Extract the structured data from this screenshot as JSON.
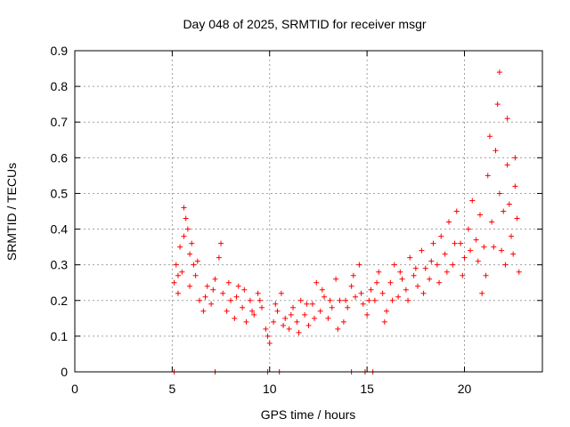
{
  "chart_data": {
    "type": "scatter",
    "title": "Day 048 of 2025, SRMTID for receiver msgr",
    "xlabel": "GPS time / hours",
    "ylabel": "SRMTID / TECUs",
    "xlim": [
      0,
      24
    ],
    "ylim": [
      0,
      0.9
    ],
    "xticks": [
      0,
      5,
      10,
      15,
      20
    ],
    "xtick_labels": [
      "0",
      "5",
      "10",
      "15",
      "20"
    ],
    "yticks": [
      0,
      0.1,
      0.2,
      0.3,
      0.4,
      0.5,
      0.6,
      0.7,
      0.8,
      0.9
    ],
    "ytick_labels": [
      "0",
      "0.1",
      "0.2",
      "0.3",
      "0.4",
      "0.5",
      "0.6",
      "0.7",
      "0.8",
      "0.9"
    ],
    "grid": true,
    "marker": "+",
    "color": "#ff0000",
    "series": [
      {
        "name": "SRMTID",
        "points": [
          [
            5.1,
            0.25
          ],
          [
            5.2,
            0.3
          ],
          [
            5.3,
            0.22
          ],
          [
            5.4,
            0.35
          ],
          [
            5.5,
            0.28
          ],
          [
            5.6,
            0.46
          ],
          [
            5.7,
            0.43
          ],
          [
            5.8,
            0.4
          ],
          [
            5.9,
            0.33
          ],
          [
            6.0,
            0.36
          ],
          [
            6.1,
            0.3
          ],
          [
            6.2,
            0.27
          ],
          [
            6.4,
            0.2
          ],
          [
            6.6,
            0.17
          ],
          [
            6.8,
            0.24
          ],
          [
            7.0,
            0.19
          ],
          [
            7.2,
            0.26
          ],
          [
            7.4,
            0.32
          ],
          [
            7.6,
            0.22
          ],
          [
            7.8,
            0.17
          ],
          [
            8.0,
            0.2
          ],
          [
            8.2,
            0.15
          ],
          [
            8.4,
            0.24
          ],
          [
            8.6,
            0.18
          ],
          [
            8.8,
            0.14
          ],
          [
            9.0,
            0.2
          ],
          [
            9.2,
            0.16
          ],
          [
            9.4,
            0.22
          ],
          [
            9.6,
            0.18
          ],
          [
            9.8,
            0.12
          ],
          [
            10.0,
            0.08
          ],
          [
            10.2,
            0.14
          ],
          [
            10.4,
            0.17
          ],
          [
            10.6,
            0.22
          ],
          [
            10.8,
            0.15
          ],
          [
            11.0,
            0.12
          ],
          [
            11.2,
            0.18
          ],
          [
            11.4,
            0.14
          ],
          [
            11.6,
            0.2
          ],
          [
            11.8,
            0.16
          ],
          [
            12.0,
            0.13
          ],
          [
            12.2,
            0.19
          ],
          [
            12.4,
            0.25
          ],
          [
            12.6,
            0.17
          ],
          [
            12.8,
            0.21
          ],
          [
            13.0,
            0.15
          ],
          [
            13.2,
            0.18
          ],
          [
            13.4,
            0.26
          ],
          [
            13.6,
            0.2
          ],
          [
            13.8,
            0.14
          ],
          [
            14.0,
            0.18
          ],
          [
            14.2,
            0.24
          ],
          [
            14.4,
            0.21
          ],
          [
            14.6,
            0.3
          ],
          [
            14.8,
            0.19
          ],
          [
            15.0,
            0.16
          ],
          [
            15.2,
            0.23
          ],
          [
            15.4,
            0.2
          ],
          [
            15.6,
            0.28
          ],
          [
            15.8,
            0.22
          ],
          [
            16.0,
            0.17
          ],
          [
            16.2,
            0.25
          ],
          [
            16.4,
            0.3
          ],
          [
            16.6,
            0.21
          ],
          [
            16.8,
            0.26
          ],
          [
            17.0,
            0.23
          ],
          [
            17.2,
            0.32
          ],
          [
            17.4,
            0.27
          ],
          [
            17.6,
            0.24
          ],
          [
            17.8,
            0.34
          ],
          [
            18.0,
            0.29
          ],
          [
            18.2,
            0.26
          ],
          [
            18.4,
            0.36
          ],
          [
            18.6,
            0.3
          ],
          [
            18.8,
            0.38
          ],
          [
            19.0,
            0.33
          ],
          [
            19.2,
            0.42
          ],
          [
            19.4,
            0.3
          ],
          [
            19.6,
            0.45
          ],
          [
            19.8,
            0.36
          ],
          [
            20.0,
            0.32
          ],
          [
            20.2,
            0.4
          ],
          [
            20.4,
            0.48
          ],
          [
            20.6,
            0.37
          ],
          [
            20.8,
            0.44
          ],
          [
            21.0,
            0.35
          ],
          [
            21.2,
            0.55
          ],
          [
            21.4,
            0.42
          ],
          [
            21.6,
            0.62
          ],
          [
            21.8,
            0.5
          ],
          [
            22.0,
            0.45
          ],
          [
            22.2,
            0.58
          ],
          [
            22.4,
            0.38
          ],
          [
            22.6,
            0.52
          ],
          [
            5.3,
            0.27
          ],
          [
            5.6,
            0.38
          ],
          [
            5.9,
            0.24
          ],
          [
            6.3,
            0.31
          ],
          [
            6.7,
            0.21
          ],
          [
            7.1,
            0.23
          ],
          [
            7.5,
            0.36
          ],
          [
            7.9,
            0.25
          ],
          [
            8.3,
            0.21
          ],
          [
            8.7,
            0.23
          ],
          [
            9.1,
            0.17
          ],
          [
            9.5,
            0.2
          ],
          [
            9.9,
            0.1
          ],
          [
            10.3,
            0.19
          ],
          [
            10.7,
            0.13
          ],
          [
            11.1,
            0.16
          ],
          [
            11.5,
            0.11
          ],
          [
            11.9,
            0.19
          ],
          [
            12.3,
            0.15
          ],
          [
            12.7,
            0.23
          ],
          [
            13.1,
            0.2
          ],
          [
            13.5,
            0.12
          ],
          [
            13.9,
            0.2
          ],
          [
            14.3,
            0.27
          ],
          [
            14.7,
            0.22
          ],
          [
            15.1,
            0.2
          ],
          [
            15.5,
            0.25
          ],
          [
            15.9,
            0.14
          ],
          [
            16.3,
            0.2
          ],
          [
            16.7,
            0.28
          ],
          [
            17.1,
            0.2
          ],
          [
            17.5,
            0.29
          ],
          [
            17.9,
            0.22
          ],
          [
            18.3,
            0.31
          ],
          [
            18.7,
            0.25
          ],
          [
            19.1,
            0.28
          ],
          [
            19.5,
            0.36
          ],
          [
            19.9,
            0.27
          ],
          [
            20.3,
            0.34
          ],
          [
            20.7,
            0.31
          ],
          [
            21.1,
            0.27
          ],
          [
            21.5,
            0.35
          ],
          [
            21.7,
            0.75
          ],
          [
            21.9,
            0.34
          ],
          [
            22.1,
            0.3
          ],
          [
            22.3,
            0.47
          ],
          [
            22.5,
            0.33
          ],
          [
            22.7,
            0.43
          ],
          [
            20.9,
            0.22
          ],
          [
            21.3,
            0.66
          ],
          [
            21.8,
            0.84
          ],
          [
            22.2,
            0.71
          ],
          [
            22.6,
            0.6
          ],
          [
            22.8,
            0.28
          ]
        ]
      }
    ],
    "zero_markers": [
      5.1,
      7.2,
      9.9,
      10.5,
      14.2,
      14.9,
      15.3
    ]
  }
}
